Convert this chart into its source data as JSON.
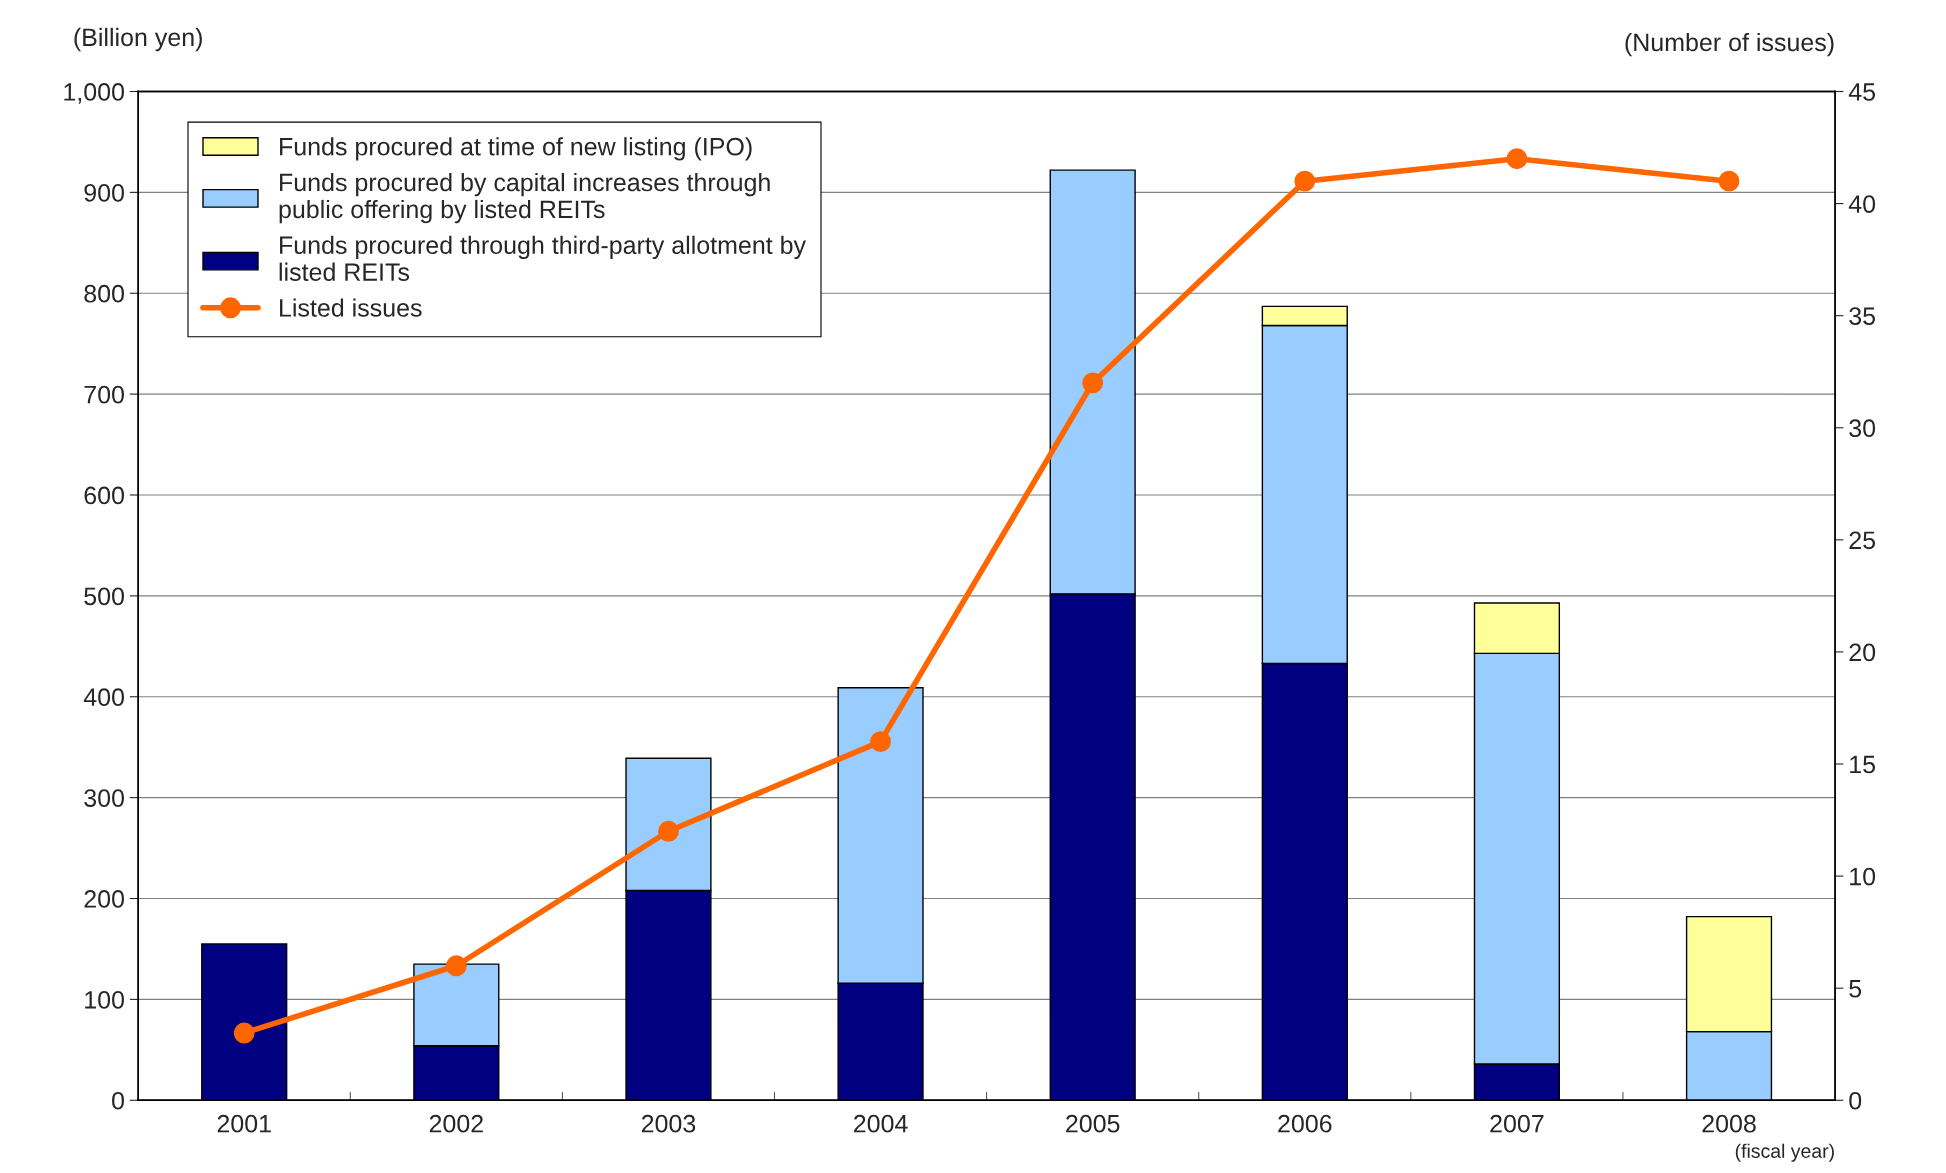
{
  "chart_data": {
    "type": "bar",
    "stacked": true,
    "categories": [
      "2001",
      "2002",
      "2003",
      "2004",
      "2005",
      "2006",
      "2007",
      "2008"
    ],
    "xlabel": "(fiscal year)",
    "ylabel": "(Billion yen)",
    "y2label": "(Number of issues)",
    "ylim": [
      0,
      1000
    ],
    "yticks": [
      0,
      100,
      200,
      300,
      400,
      500,
      600,
      700,
      800,
      900,
      {
        "value": 1000,
        "label": "1,000"
      }
    ],
    "y2lim": [
      0,
      45
    ],
    "y2ticks": [
      0,
      5,
      10,
      15,
      20,
      25,
      30,
      35,
      40,
      45
    ],
    "grid": "y",
    "legend": "top left",
    "series": [
      {
        "name": "Funds procured through third-party allotment by\nlisted REITs",
        "color": "#000080",
        "values": [
          155,
          54,
          208,
          116,
          502,
          433,
          36,
          null
        ]
      },
      {
        "name": "Funds procured by capital increases through\npublic offering by listed REITs",
        "color": "#99ccff",
        "values": [
          null,
          81,
          131,
          293,
          420,
          335,
          407,
          68
        ]
      },
      {
        "name": "Funds procured at time of new listing (IPO)",
        "color": "#ffff99",
        "values": [
          null,
          null,
          null,
          null,
          null,
          19,
          50,
          114
        ]
      },
      {
        "name": "Listed issues",
        "type": "line",
        "axis": "y2",
        "color": "#ff6600",
        "marker": "circle",
        "line_style": "solid",
        "values": [
          3,
          6,
          12,
          16,
          32,
          41,
          42,
          41
        ]
      }
    ]
  }
}
